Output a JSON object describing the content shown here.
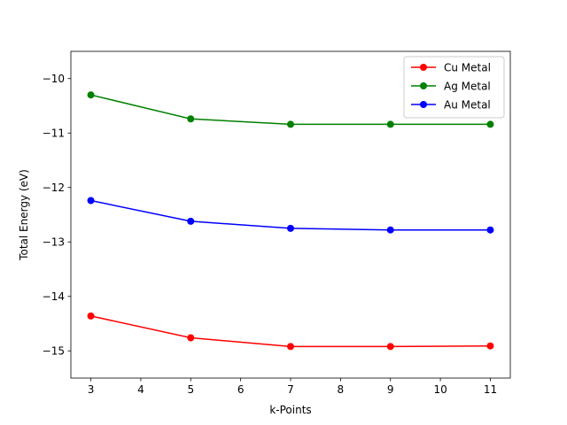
{
  "chart_data": {
    "type": "line",
    "title": "",
    "xlabel": "k-Points",
    "ylabel": "Total Energy (eV)",
    "xlim": [
      2.6,
      11.4
    ],
    "ylim": [
      -15.5,
      -9.5
    ],
    "xticks": [
      3,
      4,
      5,
      6,
      7,
      8,
      9,
      10,
      11
    ],
    "yticks": [
      -15,
      -14,
      -13,
      -12,
      -11,
      -10
    ],
    "grid": false,
    "legend_position": "top-right",
    "x": [
      3,
      5,
      7,
      9,
      11
    ],
    "series": [
      {
        "name": "Cu Metal",
        "color": "#ff0000",
        "marker": "circle",
        "values": [
          -14.36,
          -14.76,
          -14.92,
          -14.92,
          -14.91
        ]
      },
      {
        "name": "Ag Metal",
        "color": "#008000",
        "marker": "circle",
        "values": [
          -10.3,
          -10.74,
          -10.84,
          -10.84,
          -10.84
        ]
      },
      {
        "name": "Au Metal",
        "color": "#0000ff",
        "marker": "circle",
        "values": [
          -12.24,
          -12.62,
          -12.75,
          -12.78,
          -12.78
        ]
      }
    ]
  }
}
